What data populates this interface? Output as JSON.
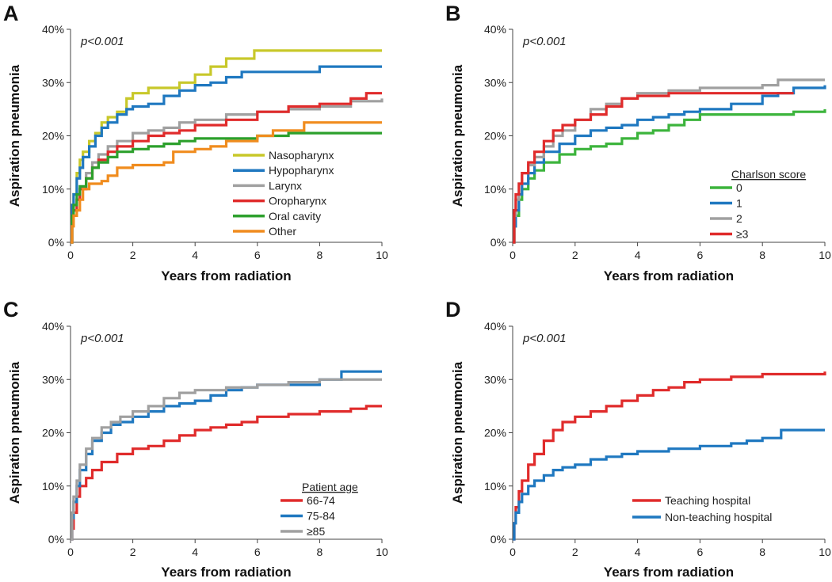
{
  "chart_data": [
    {
      "panel": "A",
      "type": "line",
      "step": true,
      "pvalue": "p<0.001",
      "xlabel": "Years from radiation",
      "ylabel": "Aspiration pneumonia",
      "xlim": [
        0,
        10
      ],
      "ylim": [
        0,
        40
      ],
      "xticks": [
        0,
        2,
        4,
        6,
        8,
        10
      ],
      "yticks": [
        "0%",
        "10%",
        "20%",
        "30%",
        "40%"
      ],
      "legend_title": "",
      "legend_position": "bottom-right",
      "series": [
        {
          "name": "Nasopharynx",
          "color": "#c8c82a",
          "x": [
            0,
            0.05,
            0.1,
            0.2,
            0.3,
            0.4,
            0.6,
            0.8,
            1.0,
            1.2,
            1.5,
            1.8,
            2.0,
            2.5,
            3.0,
            3.5,
            4.0,
            4.5,
            5.0,
            5.5,
            5.9,
            6.5,
            8.0,
            10.0
          ],
          "y": [
            0,
            5,
            9,
            13,
            15.5,
            17,
            19,
            20.5,
            22.5,
            23.5,
            24.5,
            27,
            28,
            29,
            29,
            30,
            31.5,
            33,
            34.5,
            34.5,
            36,
            36,
            36,
            36
          ]
        },
        {
          "name": "Hypopharynx",
          "color": "#1f78c0",
          "x": [
            0,
            0.05,
            0.1,
            0.2,
            0.3,
            0.4,
            0.6,
            0.8,
            1.0,
            1.2,
            1.5,
            1.8,
            2.0,
            2.5,
            3.0,
            3.5,
            4.0,
            4.5,
            5.0,
            5.5,
            6.0,
            7.0,
            8.0,
            10.0
          ],
          "y": [
            0,
            7,
            9,
            12,
            14,
            16,
            18,
            20,
            21.5,
            22.5,
            24,
            25,
            25.5,
            26,
            27.5,
            28.5,
            29.5,
            30,
            31,
            32,
            32,
            32,
            33,
            33
          ]
        },
        {
          "name": "Larynx",
          "color": "#a0a0a0",
          "x": [
            0,
            0.05,
            0.1,
            0.2,
            0.3,
            0.5,
            0.7,
            0.9,
            1.2,
            1.5,
            2.0,
            2.5,
            3.0,
            3.5,
            4.0,
            5.0,
            6.0,
            7.0,
            8.0,
            9.0,
            10.0
          ],
          "y": [
            0,
            4,
            6,
            8,
            10,
            13,
            15,
            16.5,
            18,
            19,
            20.5,
            21,
            21.5,
            22.5,
            23,
            24,
            24.5,
            25,
            25.5,
            26.5,
            27
          ]
        },
        {
          "name": "Oropharynx",
          "color": "#e02b2b",
          "x": [
            0,
            0.05,
            0.1,
            0.2,
            0.3,
            0.5,
            0.7,
            0.9,
            1.2,
            1.5,
            2.0,
            2.5,
            3.0,
            3.5,
            4.0,
            5.0,
            6.0,
            7.0,
            8.0,
            9.0,
            9.5,
            10.0
          ],
          "y": [
            0,
            4,
            6,
            8,
            10,
            12,
            14,
            15.5,
            17,
            18,
            19,
            20,
            20.5,
            21,
            22,
            23,
            24.5,
            25.5,
            26,
            27,
            28,
            28
          ]
        },
        {
          "name": "Oral cavity",
          "color": "#2ca02c",
          "x": [
            0,
            0.05,
            0.1,
            0.2,
            0.3,
            0.5,
            0.7,
            0.9,
            1.2,
            1.5,
            2.0,
            2.5,
            3.0,
            3.5,
            4.0,
            5.0,
            6.0,
            7.0,
            10.0
          ],
          "y": [
            0,
            5,
            7,
            9,
            10.5,
            12,
            14,
            15,
            16,
            17,
            17.5,
            18,
            18.5,
            19,
            19.5,
            19.5,
            20,
            20.5,
            20.5
          ]
        },
        {
          "name": "Other",
          "color": "#f08c1e",
          "x": [
            0,
            0.05,
            0.1,
            0.2,
            0.3,
            0.4,
            0.6,
            0.8,
            1.0,
            1.2,
            1.5,
            2.0,
            2.5,
            3.0,
            3.3,
            4.0,
            4.5,
            5.0,
            5.5,
            6.0,
            6.5,
            7.0,
            7.5,
            10.0
          ],
          "y": [
            0,
            3,
            5,
            6,
            8,
            10,
            11,
            11,
            11.5,
            12.5,
            14,
            14.5,
            14.5,
            15,
            17,
            17.5,
            18,
            19,
            19,
            20,
            21,
            21,
            22.5,
            22.5
          ]
        }
      ]
    },
    {
      "panel": "B",
      "type": "line",
      "step": true,
      "pvalue": "p<0.001",
      "xlabel": "Years from radiation",
      "ylabel": "Aspiration pneumonia",
      "xlim": [
        0,
        10
      ],
      "ylim": [
        0,
        40
      ],
      "xticks": [
        0,
        2,
        4,
        6,
        8,
        10
      ],
      "yticks": [
        "0%",
        "10%",
        "20%",
        "30%",
        "40%"
      ],
      "legend_title": "Charlson score",
      "legend_position": "right",
      "series": [
        {
          "name": "0",
          "color": "#3cb43c",
          "x": [
            0,
            0.05,
            0.1,
            0.2,
            0.3,
            0.5,
            0.7,
            1.0,
            1.5,
            2.0,
            2.5,
            3.0,
            3.5,
            4.0,
            4.5,
            5.0,
            5.5,
            6.0,
            7.0,
            8.0,
            9.0,
            10.0
          ],
          "y": [
            0,
            3,
            5,
            8,
            10,
            12,
            13.5,
            15,
            16.5,
            17.5,
            18,
            18.5,
            19.5,
            20.5,
            21,
            22,
            23,
            24,
            24,
            24,
            24.5,
            25
          ]
        },
        {
          "name": "1",
          "color": "#1f78c0",
          "x": [
            0,
            0.05,
            0.1,
            0.2,
            0.3,
            0.5,
            0.7,
            1.0,
            1.5,
            2.0,
            2.5,
            3.0,
            3.5,
            4.0,
            4.5,
            5.0,
            5.5,
            6.0,
            7.0,
            8.0,
            8.5,
            9.0,
            10.0
          ],
          "y": [
            0,
            3,
            6,
            9,
            11,
            13,
            15,
            17,
            18.5,
            20,
            21,
            21.5,
            22,
            23,
            23.5,
            24,
            24.5,
            25,
            26,
            27.5,
            28,
            29,
            29.5
          ]
        },
        {
          "name": "2",
          "color": "#a0a0a0",
          "x": [
            0,
            0.05,
            0.1,
            0.2,
            0.3,
            0.5,
            0.7,
            1.0,
            1.3,
            1.6,
            2.0,
            2.5,
            3.0,
            3.5,
            4.0,
            5.0,
            6.0,
            7.0,
            8.0,
            8.5,
            10.0
          ],
          "y": [
            0,
            5,
            8,
            11,
            13,
            14.5,
            16,
            18,
            20,
            21,
            23,
            25,
            26,
            27,
            28,
            28.5,
            29,
            29,
            29.5,
            30.5,
            30.5
          ]
        },
        {
          "name": "≥3",
          "color": "#e02b2b",
          "x": [
            0,
            0.05,
            0.1,
            0.2,
            0.3,
            0.5,
            0.7,
            1.0,
            1.3,
            1.6,
            2.0,
            2.5,
            3.0,
            3.5,
            4.0,
            5.0,
            6.0,
            7.0,
            8.0,
            9.0
          ],
          "y": [
            0,
            6,
            9,
            11,
            13,
            15,
            17,
            19,
            21,
            22,
            23,
            24,
            25.5,
            27,
            27.5,
            28,
            28,
            28,
            28,
            28
          ]
        }
      ]
    },
    {
      "panel": "C",
      "type": "line",
      "step": true,
      "pvalue": "p<0.001",
      "xlabel": "Years from radiation",
      "ylabel": "Aspiration pneumonia",
      "xlim": [
        0,
        10
      ],
      "ylim": [
        0,
        40
      ],
      "xticks": [
        0,
        2,
        4,
        6,
        8,
        10
      ],
      "yticks": [
        "0%",
        "10%",
        "20%",
        "30%",
        "40%"
      ],
      "legend_title": "Patient age",
      "legend_position": "right",
      "series": [
        {
          "name": "66-74",
          "color": "#e02b2b",
          "x": [
            0,
            0.05,
            0.1,
            0.2,
            0.3,
            0.5,
            0.7,
            1.0,
            1.5,
            2.0,
            2.5,
            3.0,
            3.5,
            4.0,
            4.5,
            5.0,
            5.5,
            6.0,
            7.0,
            8.0,
            9.0,
            9.5,
            10.0
          ],
          "y": [
            0,
            2,
            5,
            8,
            10,
            11.5,
            13,
            14.5,
            16,
            17,
            17.5,
            18.5,
            19.5,
            20.5,
            21,
            21.5,
            22,
            23,
            23.5,
            24,
            24.5,
            25,
            25
          ]
        },
        {
          "name": "75-84",
          "color": "#1f78c0",
          "x": [
            0,
            0.05,
            0.1,
            0.2,
            0.3,
            0.5,
            0.7,
            1.0,
            1.3,
            1.6,
            2.0,
            2.5,
            3.0,
            3.5,
            4.0,
            4.5,
            5.0,
            5.5,
            6.0,
            7.0,
            8.0,
            8.7,
            10.0
          ],
          "y": [
            0,
            4,
            7,
            10,
            13,
            16,
            18.5,
            20,
            21.5,
            22,
            23,
            24,
            25,
            25.5,
            26,
            27,
            28,
            28.5,
            29,
            29,
            30,
            31.5,
            31.5
          ]
        },
        {
          "name": "≥85",
          "color": "#a0a0a0",
          "x": [
            0,
            0.05,
            0.1,
            0.2,
            0.3,
            0.5,
            0.7,
            1.0,
            1.3,
            1.6,
            2.0,
            2.5,
            3.0,
            3.5,
            4.0,
            5.0,
            6.0,
            7.0,
            8.0,
            9.0,
            10.0
          ],
          "y": [
            0,
            5,
            8,
            11,
            14,
            17,
            19,
            21,
            22,
            23,
            24,
            25,
            26.5,
            27.5,
            28,
            28.5,
            29,
            29.5,
            30,
            30,
            30
          ]
        }
      ]
    },
    {
      "panel": "D",
      "type": "line",
      "step": true,
      "pvalue": "p<0.001",
      "xlabel": "Years from radiation",
      "ylabel": "Aspiration pneumonia",
      "xlim": [
        0,
        10
      ],
      "ylim": [
        0,
        40
      ],
      "xticks": [
        0,
        2,
        4,
        6,
        8,
        10
      ],
      "yticks": [
        "0%",
        "10%",
        "20%",
        "30%",
        "40%"
      ],
      "legend_title": "",
      "legend_position": "bottom-right",
      "series": [
        {
          "name": "Teaching hospital",
          "color": "#e02b2b",
          "x": [
            0,
            0.05,
            0.1,
            0.2,
            0.3,
            0.5,
            0.7,
            1.0,
            1.3,
            1.6,
            2.0,
            2.5,
            3.0,
            3.5,
            4.0,
            4.5,
            5.0,
            5.5,
            6.0,
            7.0,
            8.0,
            9.0,
            10.0
          ],
          "y": [
            0,
            3,
            6,
            9,
            11,
            14,
            16,
            18.5,
            20.5,
            22,
            23,
            24,
            25,
            26,
            27,
            28,
            28.5,
            29.5,
            30,
            30.5,
            31,
            31,
            31.5
          ]
        },
        {
          "name": "Non-teaching hospital",
          "color": "#1f78c0",
          "x": [
            0,
            0.05,
            0.1,
            0.2,
            0.3,
            0.5,
            0.7,
            1.0,
            1.3,
            1.6,
            2.0,
            2.5,
            3.0,
            3.5,
            4.0,
            5.0,
            6.0,
            7.0,
            7.5,
            8.0,
            8.6,
            10.0
          ],
          "y": [
            0,
            3,
            5,
            7,
            8.5,
            10,
            11,
            12,
            13,
            13.5,
            14,
            15,
            15.5,
            16,
            16.5,
            17,
            17.5,
            18,
            18.5,
            19,
            20.5,
            20.5
          ]
        }
      ]
    }
  ]
}
